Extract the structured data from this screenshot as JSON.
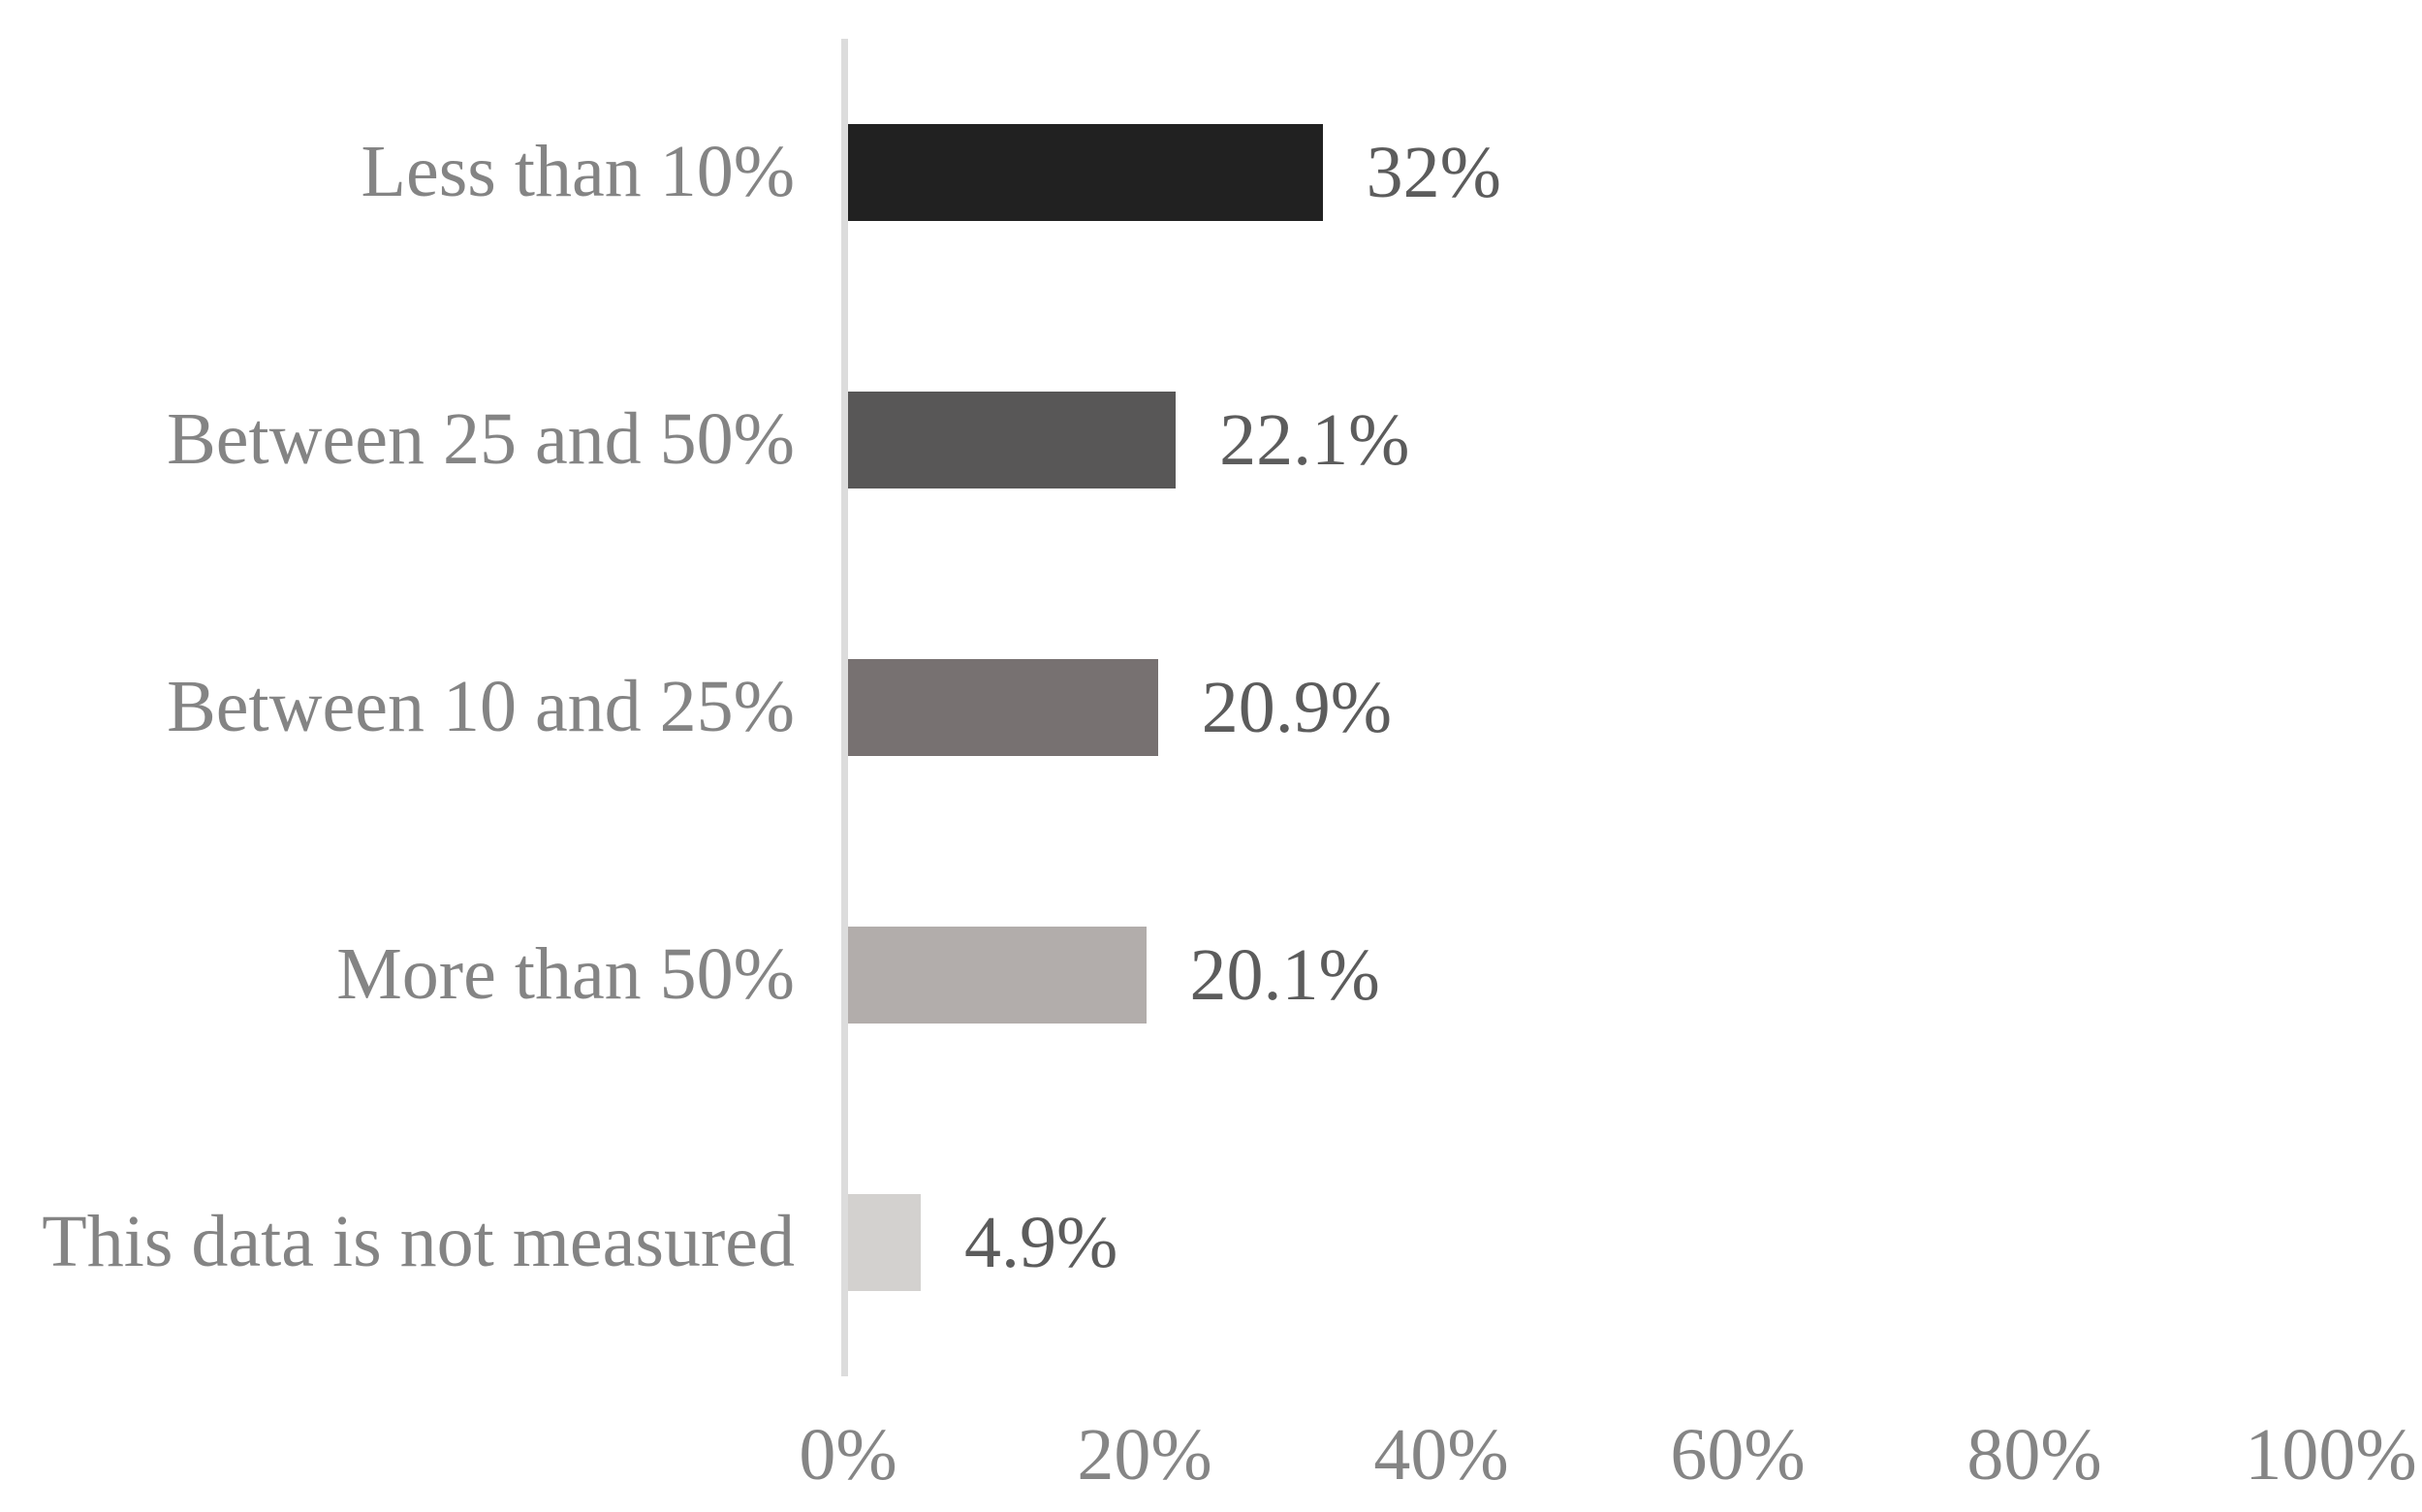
{
  "chart_data": {
    "type": "bar",
    "orientation": "horizontal",
    "title": "",
    "xlabel": "",
    "ylabel": "",
    "categories": [
      "Less than 10%",
      "Between 25 and 50%",
      "Between 10 and 25%",
      "More than 50%",
      "This data is not measured"
    ],
    "values": [
      32,
      22.1,
      20.9,
      20.1,
      4.9
    ],
    "value_labels": [
      "32%",
      "22.1%",
      "20.9%",
      "20.1%",
      "4.9%"
    ],
    "bar_colors": [
      "#212121",
      "#585757",
      "#777171",
      "#b2adab",
      "#d3d1cf"
    ],
    "x_ticks": [
      "0%",
      "20%",
      "40%",
      "60%",
      "80%",
      "100%"
    ],
    "x_tick_values": [
      0,
      20,
      40,
      60,
      80,
      100
    ],
    "xlim": [
      0,
      100
    ],
    "grid": false,
    "legend": false
  },
  "style": {
    "category_label_color": "#848484",
    "value_label_color": "#5c5c5c",
    "tick_label_color": "#858585",
    "axis_line_color": "#dcdcdc",
    "background_color": "#ffffff"
  }
}
